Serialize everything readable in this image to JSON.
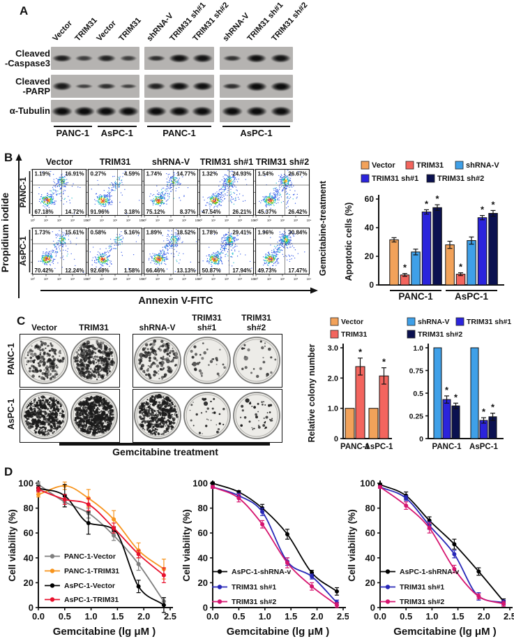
{
  "panel_letters": {
    "a": "A",
    "b": "B",
    "c": "C",
    "d": "D"
  },
  "panelA": {
    "antibody_labels": [
      "Cleaved\n-Caspase3",
      "Cleaved\n-PARP",
      "α-Tubulin"
    ],
    "groups": [
      {
        "lane_labels": [
          "Vector",
          "TRIM31",
          "Vector",
          "TRIM31"
        ],
        "cell_line_labels": [
          "PANC-1",
          "AsPC-1"
        ],
        "bands": {
          "caspase3": [
            0.75,
            0.35,
            0.7,
            0.35
          ],
          "parp": [
            0.8,
            0.3,
            0.55,
            0.3
          ],
          "tubulin": [
            1,
            1,
            1,
            1
          ]
        }
      },
      {
        "lane_labels": [
          "shRNA-V",
          "TRIM31 sh#1",
          "TRIM31 sh#2"
        ],
        "cell_line_labels": [
          "PANC-1"
        ],
        "bands": {
          "caspase3": [
            0.55,
            0.95,
            0.9
          ],
          "parp": [
            0.7,
            0.95,
            0.95
          ],
          "tubulin": [
            1,
            1,
            1
          ]
        }
      },
      {
        "lane_labels": [
          "shRNA-V",
          "TRIM31 sh#1",
          "TRIM31 sh#2"
        ],
        "cell_line_labels": [
          "AsPC-1"
        ],
        "bands": {
          "caspase3": [
            0.5,
            0.95,
            0.9
          ],
          "parp": [
            0.55,
            1,
            1
          ],
          "tubulin": [
            1,
            1,
            1
          ]
        }
      }
    ]
  },
  "panelB": {
    "flow": {
      "col_headers": [
        "Vector",
        "TRIM31",
        "shRNA-V",
        "TRIM31 sh#1",
        "TRIM31 sh#2"
      ],
      "axis_ticks": [
        "10⁰",
        "10¹",
        "10²",
        "10³",
        "10⁴"
      ],
      "x_axis_label": "Annexin V-FITC",
      "y_axis_label": "Propidium iodide",
      "right_side_label": "Gemcitabine-treatment",
      "dot_palette": [
        "#3056e8",
        "#14b9c8",
        "#58c812",
        "#ff9d00",
        "#f2330f",
        "#ffc400"
      ],
      "rows": [
        {
          "cell_line": "PANC-1",
          "plots": [
            {
              "ul": "1.19%",
              "ur": "16.91%",
              "ll": "67.18%",
              "lr": "14.72%"
            },
            {
              "ul": "0.27%",
              "ur": "4.59%",
              "ll": "91.96%",
              "lr": "3.18%"
            },
            {
              "ul": "1.74%",
              "ur": "14.77%",
              "ll": "75.12%",
              "lr": "8.37%"
            },
            {
              "ul": "1.32%",
              "ur": "24.93%",
              "ll": "47.54%",
              "lr": "26.21%"
            },
            {
              "ul": "1.54%",
              "ur": "26.67%",
              "ll": "45.37%",
              "lr": "26.42%"
            }
          ]
        },
        {
          "cell_line": "AsPC-1",
          "plots": [
            {
              "ul": "1.73%",
              "ur": "15.61%",
              "ll": "70.42%",
              "lr": "12.24%"
            },
            {
              "ul": "0.58%",
              "ur": "5.16%",
              "ll": "92.68%",
              "lr": "1.58%"
            },
            {
              "ul": "1.89%",
              "ur": "18.52%",
              "ll": "66.46%",
              "lr": "13.13%"
            },
            {
              "ul": "1.78%",
              "ur": "29.41%",
              "ll": "50.87%",
              "lr": "17.94%"
            },
            {
              "ul": "1.96%",
              "ur": "30.84%",
              "ll": "49.73%",
              "lr": "17.47%"
            }
          ]
        }
      ]
    }
  },
  "panelC": {
    "row_labels": [
      "PANC-1",
      "AsPC-1"
    ],
    "col_groups": [
      {
        "headers": [
          "Vector",
          "TRIM31"
        ],
        "density_rows": [
          [
            170,
            330
          ],
          [
            430,
            640
          ]
        ]
      },
      {
        "headers": [
          "shRNA-V",
          "TRIM31\nsh#1",
          "TRIM31\nsh#2"
        ],
        "density_rows": [
          [
            140,
            30,
            24
          ],
          [
            390,
            32,
            42
          ]
        ]
      }
    ],
    "bottom_label": "Gemcitabine treatment"
  },
  "chart_data": [
    {
      "id": "apoptosis-bar-chart",
      "type": "bar",
      "ylabel": "Apoptotic cells (%)",
      "ylim": [
        0,
        60
      ],
      "yticks": [
        0,
        20,
        40,
        60
      ],
      "categories": [
        "PANC-1",
        "AsPC-1"
      ],
      "legend_position": "top",
      "series": [
        {
          "name": "Vector",
          "color": "#F2A25A",
          "values": [
            31.5,
            28
          ],
          "errors": [
            1.5,
            2.5
          ],
          "sig": [
            false,
            false
          ]
        },
        {
          "name": "TRIM31",
          "color": "#F3655E",
          "values": [
            7,
            7.5
          ],
          "errors": [
            1,
            1
          ],
          "sig": [
            true,
            true
          ]
        },
        {
          "name": "shRNA-V",
          "color": "#3FA0E8",
          "values": [
            23,
            31
          ],
          "errors": [
            2,
            2.5
          ],
          "sig": [
            false,
            false
          ]
        },
        {
          "name": "TRIM31 sh#1",
          "color": "#2B24DC",
          "values": [
            51,
            47
          ],
          "errors": [
            1.5,
            1.5
          ],
          "sig": [
            true,
            true
          ]
        },
        {
          "name": "TRIM31 sh#2",
          "color": "#0B1150",
          "values": [
            54,
            50
          ],
          "errors": [
            2,
            2
          ],
          "sig": [
            true,
            true
          ]
        }
      ]
    },
    {
      "id": "colony-overexpression-bar-chart",
      "type": "bar",
      "ylabel": "Relative colony number",
      "ylim": [
        0,
        3
      ],
      "yticks": [
        0,
        1,
        2,
        3
      ],
      "ytick_labels": [
        "0",
        "1.0",
        "2.0",
        "3.0"
      ],
      "categories": [
        "PANC-1",
        "AsPC-1"
      ],
      "legend_position": "top",
      "series": [
        {
          "name": "Vector",
          "color": "#F2A25A",
          "values": [
            1.0,
            1.0
          ],
          "errors": [
            0,
            0
          ],
          "sig": [
            false,
            false
          ]
        },
        {
          "name": "TRIM31",
          "color": "#F3655E",
          "values": [
            2.38,
            2.07
          ],
          "errors": [
            0.28,
            0.27
          ],
          "sig": [
            true,
            true
          ]
        }
      ]
    },
    {
      "id": "colony-knockdown-bar-chart",
      "type": "bar",
      "ylabel": "",
      "ylim": [
        0,
        1
      ],
      "yticks": [
        0,
        0.25,
        0.5,
        0.75,
        1
      ],
      "ytick_labels": [
        "0",
        "0.25",
        "0.5",
        "0.75",
        "1.0"
      ],
      "categories": [
        "PANC-1",
        "AsPC-1"
      ],
      "legend_position": "top",
      "series": [
        {
          "name": "shRNA-V",
          "color": "#3FA0E8",
          "values": [
            1.0,
            1.0
          ],
          "errors": [
            0,
            0
          ],
          "sig": [
            false,
            false
          ]
        },
        {
          "name": "TRIM31 sh#1",
          "color": "#2B24DC",
          "values": [
            0.43,
            0.2
          ],
          "errors": [
            0.04,
            0.03
          ],
          "sig": [
            true,
            true
          ]
        },
        {
          "name": "TRIM31 sh#2",
          "color": "#0B1150",
          "values": [
            0.36,
            0.24
          ],
          "errors": [
            0.03,
            0.04
          ],
          "sig": [
            true,
            true
          ]
        }
      ]
    },
    {
      "id": "viability-overexpression",
      "type": "line",
      "x": [
        0,
        0.5,
        0.95,
        1.43,
        1.9,
        2.38
      ],
      "xticks": [
        "0.0",
        "0.5",
        "1.0",
        "1.5",
        "2.0",
        "2.5"
      ],
      "xlim": [
        0,
        2.5
      ],
      "ylim": [
        0,
        100
      ],
      "yticks": [
        0,
        20,
        40,
        60,
        80,
        100
      ],
      "xlabel": "Gemcitabine (lg μM )",
      "ylabel": "Cell viability (%)",
      "series": [
        {
          "name": "PANC-1-Vector",
          "color": "#7F7F7F",
          "values": [
            99,
            85,
            76,
            58,
            35,
            5
          ],
          "errors": [
            2,
            4,
            4,
            4,
            5,
            3
          ]
        },
        {
          "name": "PANC-1-TRIM31",
          "color": "#F7941D",
          "values": [
            91,
            98,
            88,
            71,
            46,
            31
          ],
          "errors": [
            2,
            3,
            7,
            7,
            6,
            8
          ]
        },
        {
          "name": "AsPC-1-Vector",
          "color": "#000000",
          "values": [
            96,
            90,
            68,
            63,
            17,
            2
          ],
          "errors": [
            2,
            9,
            9,
            2,
            5,
            6
          ]
        },
        {
          "name": "AsPC-1-TRIM31",
          "color": "#E8112D",
          "values": [
            95,
            87,
            83,
            64,
            43,
            26
          ],
          "errors": [
            2,
            4,
            5,
            4,
            3,
            6
          ]
        }
      ]
    },
    {
      "id": "viability-knockdown-1",
      "type": "line",
      "x": [
        0,
        0.5,
        0.95,
        1.43,
        1.9,
        2.38
      ],
      "xticks": [
        "0.0",
        "0.5",
        "1.0",
        "1.5",
        "2.0",
        "2.5"
      ],
      "xlim": [
        0,
        2.5
      ],
      "ylim": [
        0,
        100
      ],
      "yticks": [
        0,
        20,
        40,
        60,
        80,
        100
      ],
      "xlabel": "Gemcitabine (lg μM )",
      "ylabel": "Cell viability (%)",
      "series": [
        {
          "name": "AsPC-1-shRNA-v",
          "color": "#000000",
          "values": [
            100,
            93,
            80,
            59,
            28,
            13
          ],
          "errors": [
            1,
            1,
            3,
            4,
            2,
            3
          ]
        },
        {
          "name": "TRIM31 sh#1",
          "color": "#2828B8",
          "values": [
            97,
            90,
            77,
            37,
            25,
            4
          ],
          "errors": [
            1,
            2,
            3,
            3,
            2,
            2
          ]
        },
        {
          "name": "TRIM31 sh#2",
          "color": "#D6146F",
          "values": [
            97,
            88,
            67,
            36,
            17,
            2
          ],
          "errors": [
            1,
            3,
            3,
            4,
            3,
            2
          ]
        }
      ]
    },
    {
      "id": "viability-knockdown-2",
      "type": "line",
      "x": [
        0,
        0.5,
        0.95,
        1.43,
        1.9,
        2.38
      ],
      "xticks": [
        "0.0",
        "0.5",
        "1.0",
        "1.5",
        "2.0",
        "2.5"
      ],
      "xlim": [
        0,
        2.5
      ],
      "ylim": [
        0,
        100
      ],
      "yticks": [
        0,
        20,
        40,
        60,
        80,
        100
      ],
      "xlabel": "Gemcitabine (lg μM )",
      "ylabel": "Cell viability (%)",
      "series": [
        {
          "name": "AsPC-1-shRNA-v",
          "color": "#000000",
          "values": [
            99,
            90,
            70,
            51,
            29,
            5
          ],
          "errors": [
            1,
            3,
            3,
            4,
            3,
            2
          ]
        },
        {
          "name": "TRIM31 sh#1",
          "color": "#2828B8",
          "values": [
            97,
            88,
            66,
            43,
            9,
            4
          ],
          "errors": [
            1,
            2,
            3,
            3,
            3,
            2
          ]
        },
        {
          "name": "TRIM31 sh#2",
          "color": "#D6146F",
          "values": [
            97,
            82,
            64,
            31,
            9,
            3
          ],
          "errors": [
            1,
            3,
            4,
            3,
            2,
            2
          ]
        }
      ]
    }
  ]
}
